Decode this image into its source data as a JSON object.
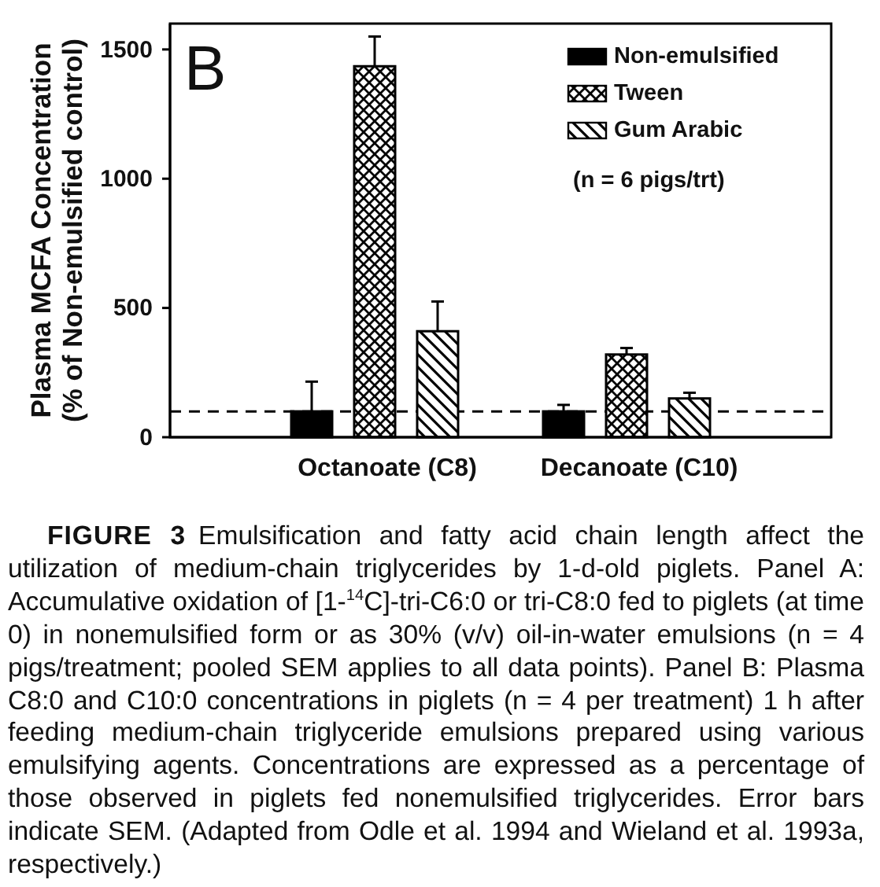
{
  "chart_data": {
    "type": "bar",
    "ylabel": "Plasma MCFA Concentration\n(% of Non-emulsified control)",
    "categories": [
      "Octanoate (C8)",
      "Decanoate (C10)"
    ],
    "series": [
      {
        "name": "Non-emulsified",
        "color": "#000000",
        "values": [
          100,
          100
        ],
        "errors": [
          [
            100,
            215
          ],
          [
            100,
            125
          ]
        ]
      },
      {
        "name": "Tween",
        "color": "#000000",
        "values": [
          1435,
          320
        ],
        "errors": [
          [
            1435,
            1550
          ],
          [
            320,
            345
          ]
        ]
      },
      {
        "name": "Gum Arabic",
        "color": "#000000",
        "values": [
          410,
          150
        ],
        "errors": [
          [
            410,
            525
          ],
          [
            150,
            172
          ]
        ]
      }
    ],
    "ylim": [
      0,
      1600
    ],
    "yticks": [
      0,
      500,
      1000,
      1500
    ],
    "ref_lines": [
      {
        "axis": "y",
        "value": 100,
        "line_style": "dashed",
        "color": "#000000"
      }
    ],
    "legend": "top right",
    "annotations": [
      "B",
      "(n = 6 pigs/trt)",
      "FIGURE 3",
      "Emulsification and fatty acid chain length affect the utilization of medium-chain triglycerides by 1-d-old piglets. Panel A: Accumulative oxidation of [1-$^{14}$C]-tri-C6:0 or tri-C8:0 fed to piglets (at time 0) in nonemulsified form or as 30% (v/v) oil-in-water emulsions (n = 4 pigs/treatment; pooled SEM applies to all data points). Panel B: Plasma C8:0 and C10:0 concentrations in piglets (n = 4 per treatment) 1 h after feeding medium-chain triglyceride emulsions prepared using various emulsifying agents. Concentrations are expressed as a percentage of those observed in piglets fed nonemulsified triglycerides. Error bars indicate SEM. (Adapted from Odle et al. 1994 and Wieland et al. 1993a, respectively.)"
    ]
  }
}
